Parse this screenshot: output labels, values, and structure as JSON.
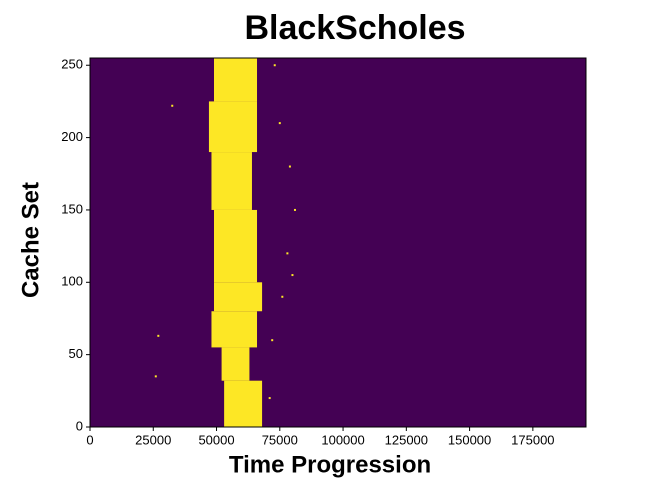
{
  "chart_data": {
    "type": "heatmap",
    "title": "BlackScholes",
    "x_label": "Time Progression",
    "y_label": "Cache Set",
    "background_color": "#440154",
    "color": "#fde725",
    "xlim": [
      0,
      196000
    ],
    "ylim": [
      0,
      255
    ],
    "xticks": [
      0,
      25000,
      50000,
      75000,
      100000,
      125000,
      150000,
      175000
    ],
    "yticks": [
      0,
      50,
      100,
      150,
      200,
      250
    ],
    "bands": [
      {
        "set_range": [
          0,
          32
        ],
        "time_range": [
          53000,
          68000
        ]
      },
      {
        "set_range": [
          32,
          55
        ],
        "time_range": [
          52000,
          63000
        ]
      },
      {
        "set_range": [
          55,
          80
        ],
        "time_range": [
          48000,
          66000
        ]
      },
      {
        "set_range": [
          80,
          100
        ],
        "time_range": [
          49000,
          68000
        ]
      },
      {
        "set_range": [
          100,
          150
        ],
        "time_range": [
          49000,
          66000
        ]
      },
      {
        "set_range": [
          150,
          190
        ],
        "time_range": [
          48000,
          64000
        ]
      },
      {
        "set_range": [
          190,
          225
        ],
        "time_range": [
          47000,
          66000
        ]
      },
      {
        "set_range": [
          225,
          255
        ],
        "time_range": [
          49000,
          66000
        ]
      }
    ],
    "points": [
      {
        "x": 32500,
        "y": 222
      },
      {
        "x": 27000,
        "y": 63
      },
      {
        "x": 26000,
        "y": 35
      },
      {
        "x": 79000,
        "y": 180
      },
      {
        "x": 78000,
        "y": 120
      },
      {
        "x": 73000,
        "y": 250
      },
      {
        "x": 75000,
        "y": 210
      },
      {
        "x": 81000,
        "y": 150
      },
      {
        "x": 76000,
        "y": 90
      },
      {
        "x": 72000,
        "y": 60
      },
      {
        "x": 71000,
        "y": 20
      },
      {
        "x": 80000,
        "y": 105
      }
    ]
  }
}
